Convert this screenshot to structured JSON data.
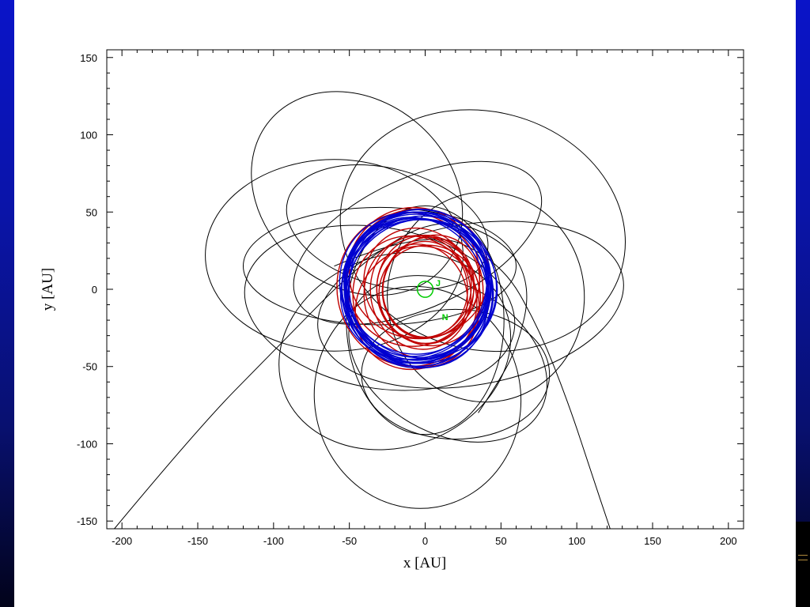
{
  "chart_data": {
    "type": "line",
    "xlabel": "x [AU]",
    "ylabel": "y [AU]",
    "xlim": [
      -210,
      210
    ],
    "ylim": [
      -155,
      155
    ],
    "x_ticks": [
      -200,
      -150,
      -100,
      -50,
      0,
      50,
      100,
      150,
      200
    ],
    "y_ticks": [
      -150,
      -100,
      -50,
      0,
      50,
      100,
      150
    ],
    "x_tick_labels": [
      "-200",
      "-150",
      "-100",
      "-50",
      "0",
      "50",
      "100",
      "150",
      "200"
    ],
    "y_tick_labels": [
      "-150",
      "-100",
      "-50",
      "0",
      "50",
      "100",
      "150"
    ],
    "grid": false,
    "planet_labels": [
      {
        "text": "J",
        "x": 7,
        "y": 2,
        "color": "#00cc00"
      },
      {
        "text": "N",
        "x": 11,
        "y": -20,
        "color": "#00cc00"
      }
    ],
    "jupiter_orbit": {
      "center": [
        0,
        0
      ],
      "radius": 5.2,
      "color": "#00cc00"
    },
    "series": [
      {
        "color": "#000000",
        "orbits": [
          {
            "cx": -60,
            "cy": 22,
            "rx": 85,
            "ry": 62,
            "rot": 0
          },
          {
            "cx": 38,
            "cy": 38,
            "rx": 95,
            "ry": 77,
            "rot": -15
          },
          {
            "cx": -30,
            "cy": -12,
            "rx": 90,
            "ry": 52,
            "rot": -10
          },
          {
            "cx": -30,
            "cy": 15,
            "rx": 90,
            "ry": 38,
            "rot": 0
          },
          {
            "cx": 30,
            "cy": -10,
            "rx": 102,
            "ry": 52,
            "rot": 10
          },
          {
            "cx": -5,
            "cy": -70,
            "rx": 68,
            "ry": 72,
            "rot": 10
          },
          {
            "cx": 20,
            "cy": -55,
            "rx": 62,
            "ry": 42,
            "rot": 0
          },
          {
            "cx": -20,
            "cy": -40,
            "rx": 78,
            "ry": 62,
            "rot": 20
          },
          {
            "cx": 15,
            "cy": -45,
            "rx": 70,
            "ry": 48,
            "rot": -30
          },
          {
            "cx": -45,
            "cy": 62,
            "rx": 75,
            "ry": 60,
            "rot": -40
          },
          {
            "cx": -5,
            "cy": 30,
            "rx": 88,
            "ry": 42,
            "rot": 25
          },
          {
            "cx": 40,
            "cy": -5,
            "rx": 65,
            "ry": 68,
            "rot": 0
          },
          {
            "cx": 0,
            "cy": -20,
            "rx": 52,
            "ry": 74,
            "rot": 0
          },
          {
            "cx": -25,
            "cy": 40,
            "rx": 68,
            "ry": 38,
            "rot": -15
          }
        ],
        "arcs": [
          {
            "points": [
              [
                -205,
                -155
              ],
              [
                -150,
                -90
              ],
              [
                -100,
                -40
              ],
              [
                -40,
                20
              ],
              [
                10,
                48
              ],
              [
                55,
                30
              ],
              [
                70,
                0
              ],
              [
                60,
                -40
              ],
              [
                45,
                -65
              ],
              [
                35,
                -80
              ]
            ]
          },
          {
            "points": [
              [
                -60,
                15
              ],
              [
                0,
                40
              ],
              [
                50,
                18
              ],
              [
                75,
                -25
              ],
              [
                95,
                -75
              ],
              [
                110,
                -120
              ],
              [
                122,
                -155
              ]
            ]
          }
        ]
      },
      {
        "color": "#c00000",
        "orbits": [
          {
            "cx": 0,
            "cy": 0,
            "rx": 32,
            "ry": 35,
            "rot": 0
          },
          {
            "cx": -3,
            "cy": -2,
            "rx": 33,
            "ry": 37,
            "rot": 10
          },
          {
            "cx": 2,
            "cy": 1,
            "rx": 30,
            "ry": 33,
            "rot": -15
          },
          {
            "cx": -5,
            "cy": 4,
            "rx": 35,
            "ry": 36,
            "rot": 30
          },
          {
            "cx": 3,
            "cy": -4,
            "rx": 34,
            "ry": 32,
            "rot": -40
          },
          {
            "cx": -2,
            "cy": -5,
            "rx": 38,
            "ry": 40,
            "rot": 20
          },
          {
            "cx": -8,
            "cy": 8,
            "rx": 44,
            "ry": 45,
            "rot": -10
          },
          {
            "cx": -6,
            "cy": -12,
            "rx": 42,
            "ry": 38,
            "rot": 50
          },
          {
            "cx": -4,
            "cy": 10,
            "rx": 46,
            "ry": 42,
            "rot": 0
          },
          {
            "cx": -10,
            "cy": 0,
            "rx": 48,
            "ry": 50,
            "rot": 15
          },
          {
            "cx": 0,
            "cy": 0,
            "rx": 28,
            "ry": 31,
            "rot": 0
          },
          {
            "cx": -2,
            "cy": -3,
            "rx": 29,
            "ry": 33,
            "rot": 25
          },
          {
            "cx": 4,
            "cy": 2,
            "rx": 31,
            "ry": 34,
            "rot": -30
          },
          {
            "cx": -6,
            "cy": -8,
            "rx": 40,
            "ry": 44,
            "rot": 35
          }
        ]
      },
      {
        "color": "#0000d0",
        "orbits": [
          {
            "cx": -5,
            "cy": 2,
            "rx": 47,
            "ry": 48,
            "rot": 0
          },
          {
            "cx": -6,
            "cy": 0,
            "rx": 49,
            "ry": 50,
            "rot": 10
          },
          {
            "cx": -4,
            "cy": 3,
            "rx": 46,
            "ry": 49,
            "rot": -10
          },
          {
            "cx": -7,
            "cy": -1,
            "rx": 48,
            "ry": 47,
            "rot": 20
          },
          {
            "cx": -3,
            "cy": 1,
            "rx": 50,
            "ry": 49,
            "rot": -20
          },
          {
            "cx": -5,
            "cy": -2,
            "rx": 45,
            "ry": 50,
            "rot": 30
          },
          {
            "cx": -6,
            "cy": 4,
            "rx": 47,
            "ry": 46,
            "rot": -30
          },
          {
            "cx": -4,
            "cy": -3,
            "rx": 49,
            "ry": 48,
            "rot": 40
          },
          {
            "cx": -5,
            "cy": 2,
            "rx": 44,
            "ry": 47,
            "rot": -40
          },
          {
            "cx": -6,
            "cy": 1,
            "rx": 48,
            "ry": 51,
            "rot": 50
          },
          {
            "cx": -4,
            "cy": -1,
            "rx": 46,
            "ry": 48,
            "rot": -50
          },
          {
            "cx": -5,
            "cy": 3,
            "rx": 50,
            "ry": 47,
            "rot": 60
          },
          {
            "cx": -7,
            "cy": 0,
            "rx": 45,
            "ry": 49,
            "rot": -60
          },
          {
            "cx": -3,
            "cy": 2,
            "rx": 47,
            "ry": 50,
            "rot": 70
          },
          {
            "cx": -5,
            "cy": -2,
            "rx": 49,
            "ry": 46,
            "rot": -70
          },
          {
            "cx": -6,
            "cy": 1,
            "rx": 46,
            "ry": 48,
            "rot": 80
          }
        ]
      }
    ]
  }
}
